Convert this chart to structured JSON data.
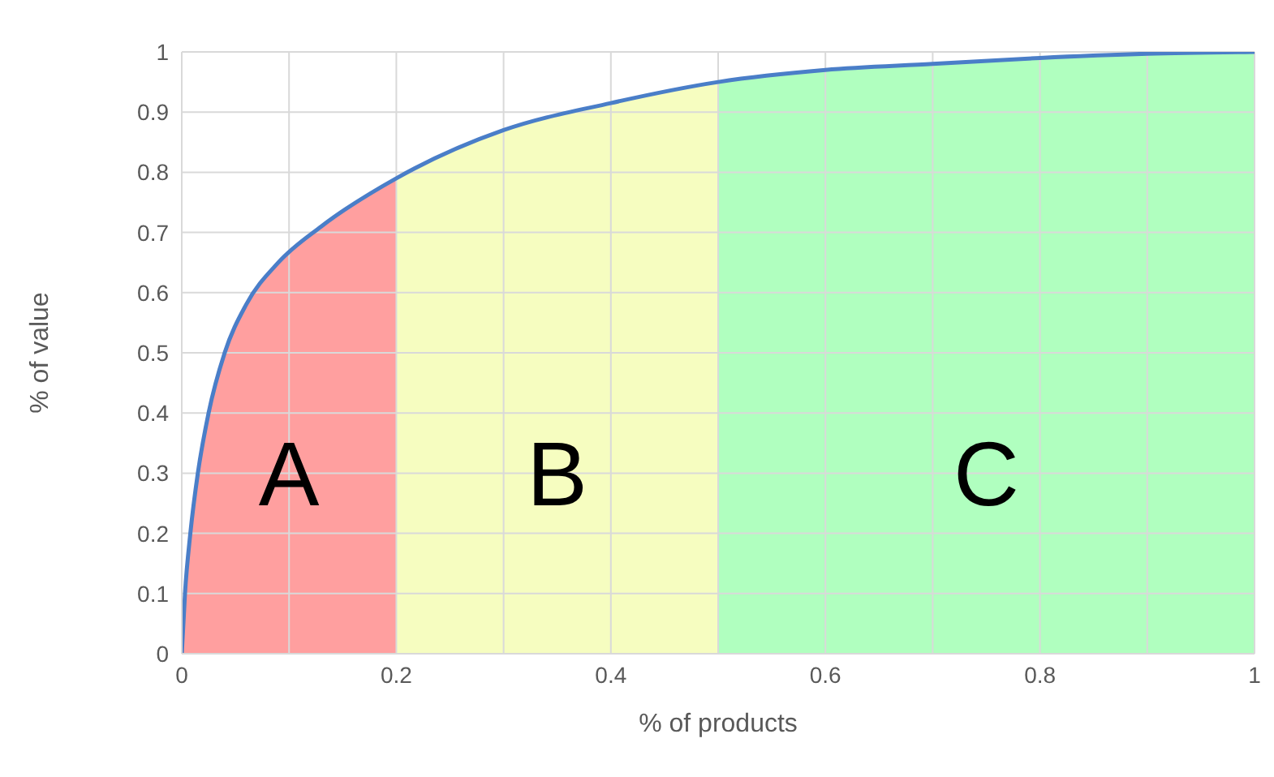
{
  "chart_data": {
    "type": "area",
    "xlabel": "% of products",
    "ylabel": "% of value",
    "xlim": [
      0,
      1
    ],
    "ylim": [
      0,
      1
    ],
    "xticks": [
      0,
      {
        "value": 0.1,
        "label": null
      },
      0.2,
      {
        "value": 0.3,
        "label": null
      },
      0.4,
      {
        "value": 0.5,
        "label": null
      },
      0.6,
      {
        "value": 0.7,
        "label": null
      },
      0.8,
      {
        "value": 0.9,
        "label": null
      },
      1
    ],
    "yticks": [
      0,
      0.1,
      0.2,
      0.3,
      0.4,
      0.5,
      0.6,
      0.7,
      0.8,
      0.9,
      1
    ],
    "grid": true,
    "legend": false,
    "series": [
      {
        "color": "#ff9f9f",
        "x": [
          0,
          0.003,
          0.008,
          0.015,
          0.025,
          0.04,
          0.06,
          0.09,
          0.13,
          0.2
        ],
        "values": [
          0,
          0.1,
          0.2,
          0.3,
          0.4,
          0.5,
          0.58,
          0.65,
          0.71,
          0.79
        ]
      },
      {
        "color": "#f6fdc0",
        "x": [
          0.2,
          0.3,
          0.4,
          0.5
        ],
        "values": [
          0.79,
          0.87,
          0.915,
          0.95
        ]
      },
      {
        "color": "#b0ffbf",
        "x": [
          0.5,
          0.6,
          0.7,
          0.8,
          0.9,
          1
        ],
        "values": [
          0.95,
          0.97,
          0.98,
          0.99,
          0.997,
          1
        ]
      },
      {
        "type": "line",
        "color": "#4a7ec8",
        "x": [
          0,
          0.003,
          0.008,
          0.015,
          0.025,
          0.04,
          0.06,
          0.09,
          0.13,
          0.2,
          0.3,
          0.4,
          0.5,
          0.6,
          0.7,
          0.8,
          0.9,
          1
        ],
        "values": [
          0,
          0.1,
          0.2,
          0.3,
          0.4,
          0.5,
          0.58,
          0.65,
          0.71,
          0.79,
          0.87,
          0.915,
          0.95,
          0.97,
          0.98,
          0.99,
          0.997,
          1
        ]
      }
    ],
    "annotations": [
      "A",
      "B",
      "C"
    ]
  }
}
